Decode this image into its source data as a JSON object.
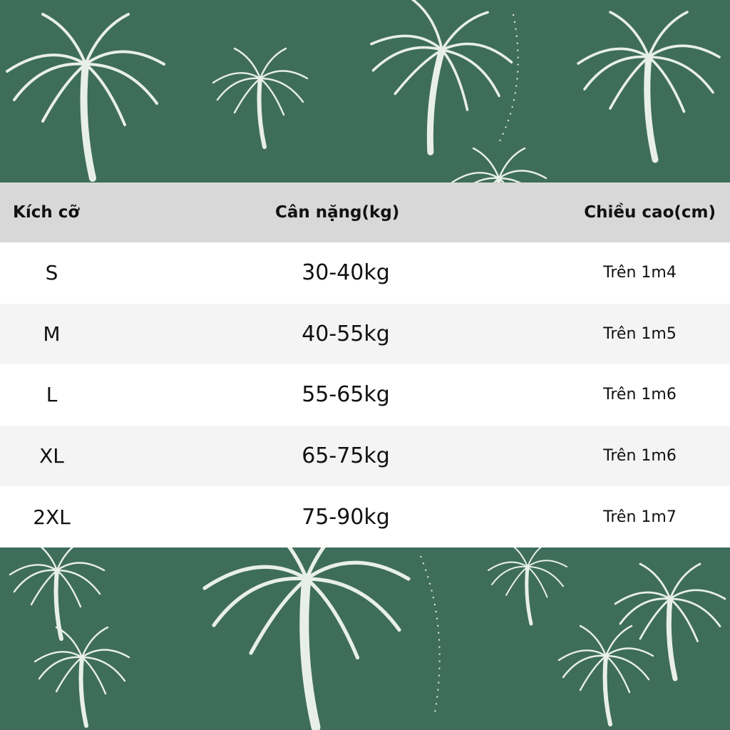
{
  "colors": {
    "background": "#3f6d5b",
    "header": "#d8d8d8",
    "palm": "#e8efe9"
  },
  "decoration": {
    "pattern": "palm-tree-icon"
  },
  "table": {
    "headers": [
      "Kích cỡ",
      "Cân nặng(kg)",
      "Chiều cao(cm)"
    ],
    "rows": [
      {
        "size": "S",
        "weight": "30-40kg",
        "height": "Trên 1m4"
      },
      {
        "size": "M",
        "weight": "40-55kg",
        "height": "Trên 1m5"
      },
      {
        "size": "L",
        "weight": "55-65kg",
        "height": "Trên 1m6"
      },
      {
        "size": "XL",
        "weight": "65-75kg",
        "height": "Trên 1m6"
      },
      {
        "size": "2XL",
        "weight": "75-90kg",
        "height": "Trên 1m7"
      }
    ]
  }
}
